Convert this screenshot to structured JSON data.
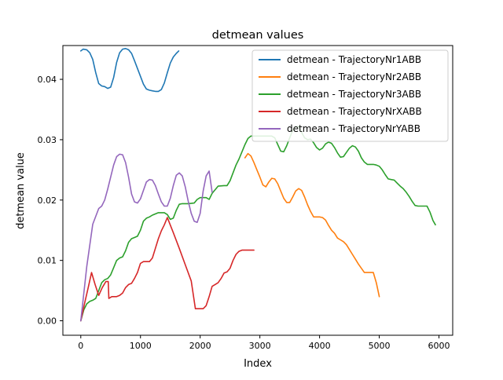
{
  "chart_data": {
    "type": "line",
    "title": "detmean values",
    "xlabel": "Index",
    "ylabel": "detmean value",
    "xlim": [
      -300,
      6230
    ],
    "ylim": [
      -0.0024,
      0.0456
    ],
    "xticks": [
      0,
      1000,
      2000,
      3000,
      4000,
      5000,
      6000
    ],
    "yticks": [
      0.0,
      0.01,
      0.02,
      0.03,
      0.04
    ],
    "xtick_labels": [
      "0",
      "1000",
      "2000",
      "3000",
      "4000",
      "5000",
      "6000"
    ],
    "ytick_labels": [
      "0.00",
      "0.01",
      "0.02",
      "0.03",
      "0.04"
    ],
    "grid": false,
    "legend_position": "top-right",
    "series": [
      {
        "name": "detmean - TrajectoryNr1ABB",
        "color": "#1f77b4",
        "x": [
          0,
          40,
          100,
          150,
          200,
          250,
          300,
          350,
          400,
          450,
          500,
          550,
          600,
          650,
          700,
          750,
          800,
          850,
          900,
          950,
          1000,
          1050,
          1100,
          1150,
          1200,
          1250,
          1300,
          1350,
          1400,
          1450,
          1500,
          1550,
          1600,
          1640
        ],
        "y": [
          0.0447,
          0.045,
          0.0449,
          0.0444,
          0.0433,
          0.0411,
          0.0393,
          0.0389,
          0.0388,
          0.0385,
          0.0387,
          0.0403,
          0.0428,
          0.0444,
          0.045,
          0.0451,
          0.0449,
          0.0443,
          0.0431,
          0.0418,
          0.0405,
          0.0392,
          0.0384,
          0.0382,
          0.0381,
          0.038,
          0.038,
          0.0383,
          0.0394,
          0.0411,
          0.0427,
          0.0437,
          0.0443,
          0.0447
        ]
      },
      {
        "name": "detmean - TrajectoryNr2ABB",
        "color": "#ff7f0e",
        "x": [
          2750,
          2800,
          2850,
          2900,
          2950,
          3000,
          3050,
          3100,
          3150,
          3200,
          3250,
          3300,
          3350,
          3400,
          3450,
          3500,
          3550,
          3600,
          3650,
          3700,
          3750,
          3800,
          3850,
          3900,
          3950,
          4000,
          4050,
          4100,
          4150,
          4200,
          4250,
          4300,
          4350,
          4400,
          4450,
          4500,
          4550,
          4600,
          4650,
          4700,
          4750,
          4800,
          4850,
          4900,
          4950,
          5000
        ],
        "y": [
          0.027,
          0.0277,
          0.0273,
          0.0262,
          0.025,
          0.0238,
          0.0225,
          0.0222,
          0.023,
          0.0236,
          0.0235,
          0.0227,
          0.0215,
          0.0203,
          0.0196,
          0.0196,
          0.0205,
          0.0215,
          0.0219,
          0.0216,
          0.0205,
          0.0192,
          0.0181,
          0.0172,
          0.0172,
          0.0172,
          0.0171,
          0.0167,
          0.0158,
          0.015,
          0.0145,
          0.0137,
          0.0134,
          0.0131,
          0.0126,
          0.0118,
          0.011,
          0.0102,
          0.0094,
          0.0087,
          0.008,
          0.008,
          0.008,
          0.008,
          0.0063,
          0.004
        ]
      },
      {
        "name": "detmean - TrajectoryNr3ABB",
        "color": "#2ca02c",
        "x": [
          0,
          50,
          100,
          150,
          200,
          250,
          300,
          350,
          400,
          450,
          500,
          550,
          600,
          650,
          700,
          750,
          800,
          850,
          900,
          950,
          1000,
          1050,
          1100,
          1150,
          1200,
          1300,
          1400,
          1450,
          1500,
          1550,
          1600,
          1650,
          1700,
          1800,
          1900,
          1950,
          2000,
          2100,
          2150,
          2200,
          2300,
          2400,
          2450,
          2500,
          2550,
          2600,
          2650,
          2700,
          2750,
          2800,
          2850,
          2900,
          3000,
          3100,
          3200,
          3250,
          3300,
          3350,
          3400,
          3450,
          3500,
          3550,
          3600,
          3650,
          3700,
          3750,
          3800,
          3850,
          3900,
          3950,
          4000,
          4050,
          4100,
          4150,
          4200,
          4250,
          4300,
          4350,
          4400,
          4450,
          4500,
          4550,
          4600,
          4650,
          4700,
          4750,
          4800,
          4850,
          4900,
          4950,
          5000,
          5050,
          5100,
          5150,
          5200,
          5250,
          5300,
          5350,
          5400,
          5450,
          5500,
          5550,
          5600,
          5650,
          5700,
          5750,
          5800,
          5850,
          5900,
          5940
        ],
        "y": [
          0.0,
          0.0018,
          0.0028,
          0.0032,
          0.0034,
          0.0037,
          0.005,
          0.0063,
          0.0068,
          0.007,
          0.0076,
          0.0088,
          0.01,
          0.0104,
          0.0106,
          0.0116,
          0.013,
          0.0136,
          0.0138,
          0.014,
          0.015,
          0.0165,
          0.017,
          0.0172,
          0.0175,
          0.0179,
          0.0179,
          0.0176,
          0.0168,
          0.017,
          0.0183,
          0.0193,
          0.0194,
          0.0194,
          0.0195,
          0.0201,
          0.0204,
          0.0204,
          0.0201,
          0.0211,
          0.0223,
          0.0224,
          0.0224,
          0.0232,
          0.0245,
          0.0258,
          0.0268,
          0.028,
          0.0292,
          0.0302,
          0.0306,
          0.0306,
          0.0306,
          0.0306,
          0.0306,
          0.0303,
          0.0292,
          0.0281,
          0.028,
          0.029,
          0.0303,
          0.0316,
          0.0322,
          0.0322,
          0.0312,
          0.0303,
          0.03,
          0.0301,
          0.0295,
          0.0287,
          0.0283,
          0.0286,
          0.0293,
          0.0296,
          0.0294,
          0.0287,
          0.0278,
          0.0271,
          0.0272,
          0.0279,
          0.0286,
          0.029,
          0.0288,
          0.0281,
          0.027,
          0.0263,
          0.0259,
          0.0259,
          0.0259,
          0.0258,
          0.0256,
          0.025,
          0.0242,
          0.0235,
          0.0234,
          0.0233,
          0.0228,
          0.0223,
          0.0219,
          0.0213,
          0.0206,
          0.0198,
          0.0191,
          0.019,
          0.019,
          0.019,
          0.019,
          0.018,
          0.0166,
          0.0159
        ]
      },
      {
        "name": "detmean - TrajectoryNrXABB",
        "color": "#d62728",
        "x": [
          0,
          60,
          120,
          180,
          240,
          300,
          360,
          420,
          460,
          470,
          520,
          600,
          650,
          700,
          750,
          800,
          850,
          900,
          950,
          1000,
          1050,
          1100,
          1150,
          1200,
          1250,
          1300,
          1350,
          1400,
          1450,
          1550,
          1650,
          1750,
          1850,
          1920,
          1950,
          2050,
          2100,
          2150,
          2200,
          2250,
          2300,
          2350,
          2400,
          2450,
          2500,
          2550,
          2600,
          2650,
          2700,
          2750,
          2800,
          2850,
          2900
        ],
        "y": [
          0.0,
          0.0027,
          0.0053,
          0.008,
          0.006,
          0.0042,
          0.0055,
          0.0065,
          0.0065,
          0.0037,
          0.004,
          0.004,
          0.0042,
          0.0046,
          0.0055,
          0.006,
          0.0062,
          0.007,
          0.008,
          0.0095,
          0.0098,
          0.0098,
          0.0098,
          0.0104,
          0.012,
          0.0136,
          0.0149,
          0.0159,
          0.0171,
          0.0146,
          0.012,
          0.0093,
          0.0066,
          0.002,
          0.002,
          0.002,
          0.0025,
          0.004,
          0.0057,
          0.006,
          0.0063,
          0.007,
          0.0079,
          0.0081,
          0.0087,
          0.01,
          0.011,
          0.0115,
          0.0117,
          0.0117,
          0.0117,
          0.0117,
          0.0117
        ]
      },
      {
        "name": "detmean - TrajectoryNrYABB",
        "color": "#9467bd",
        "x": [
          0,
          100,
          200,
          300,
          350,
          400,
          450,
          500,
          550,
          600,
          650,
          700,
          750,
          800,
          850,
          900,
          950,
          1000,
          1050,
          1100,
          1150,
          1200,
          1250,
          1300,
          1350,
          1400,
          1450,
          1500,
          1550,
          1600,
          1650,
          1700,
          1750,
          1800,
          1850,
          1900,
          1950,
          2000,
          2050,
          2100,
          2150,
          2200
        ],
        "y": [
          0.0,
          0.009,
          0.016,
          0.0186,
          0.019,
          0.02,
          0.0218,
          0.0238,
          0.0258,
          0.0272,
          0.0276,
          0.0275,
          0.0262,
          0.0238,
          0.021,
          0.0197,
          0.0195,
          0.0202,
          0.0216,
          0.023,
          0.0234,
          0.0233,
          0.0224,
          0.021,
          0.0197,
          0.019,
          0.019,
          0.0203,
          0.0224,
          0.0241,
          0.0245,
          0.024,
          0.0222,
          0.0198,
          0.0178,
          0.0165,
          0.0163,
          0.0178,
          0.0215,
          0.024,
          0.0248,
          0.0213
        ]
      }
    ]
  }
}
